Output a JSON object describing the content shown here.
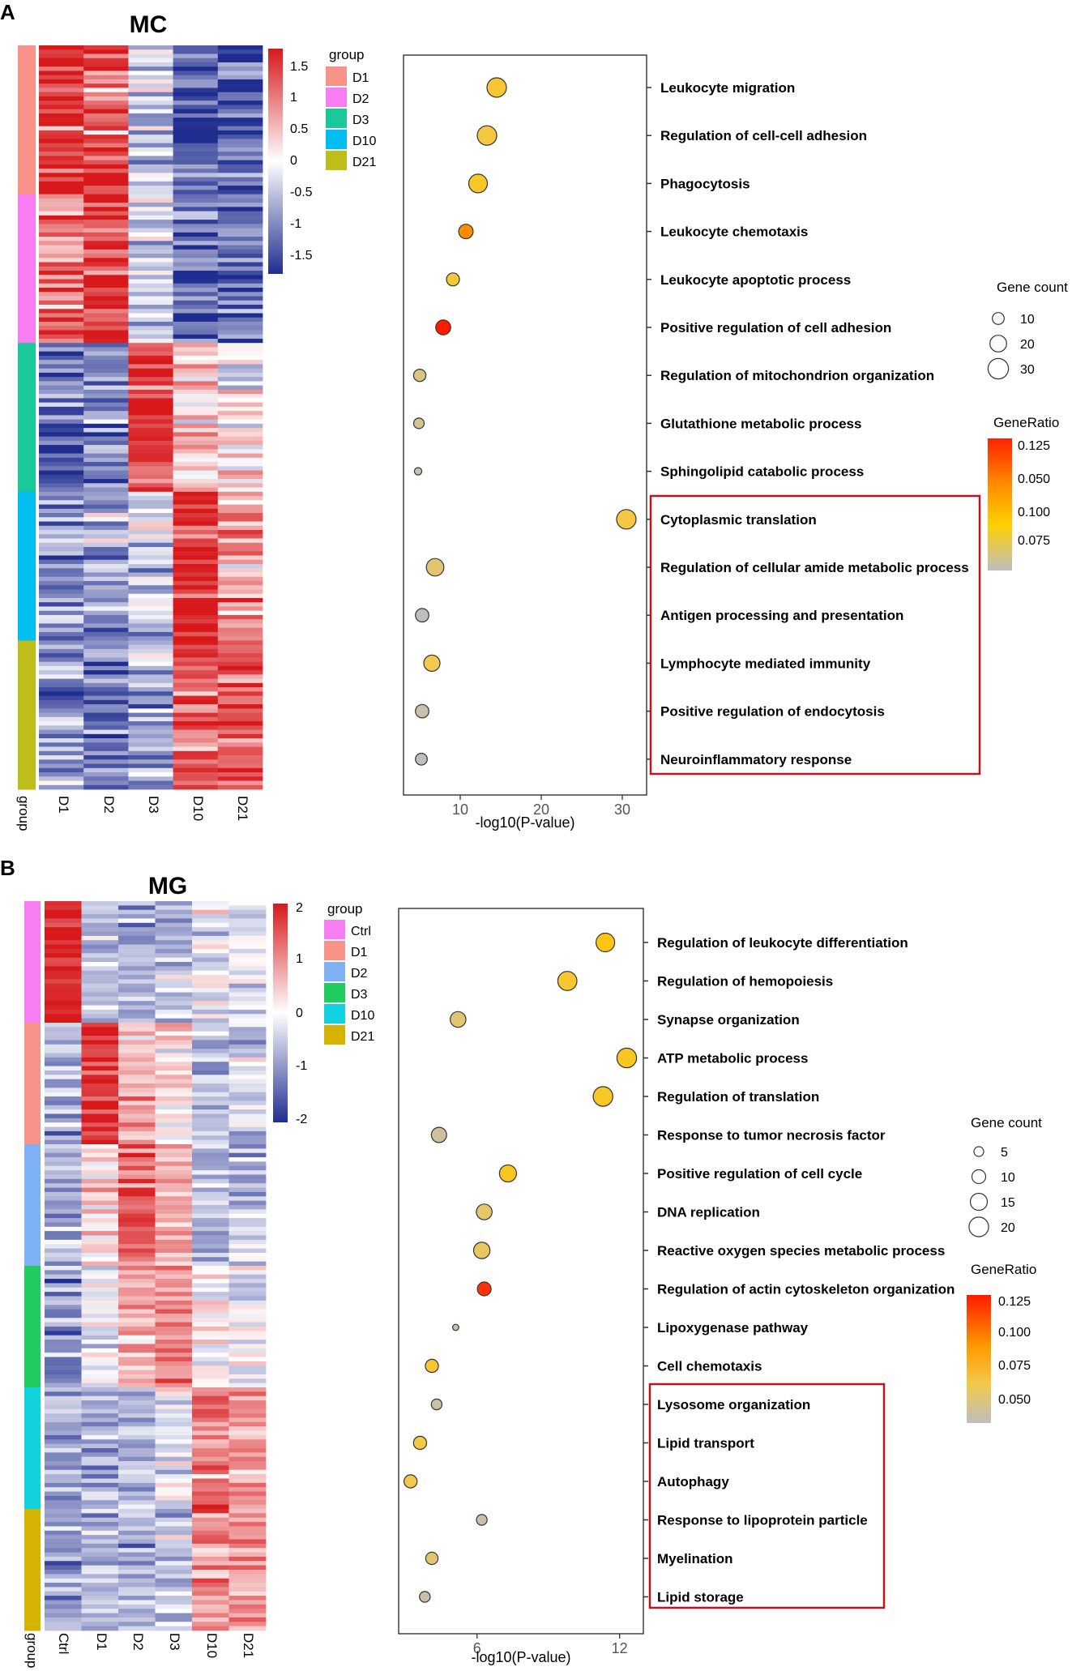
{
  "panels": [
    {
      "letter": "A",
      "title": "MC",
      "heatmap": {
        "columns": [
          "D1",
          "D2",
          "D3",
          "D10",
          "D21"
        ],
        "group_axis_label": "group",
        "groups": [
          {
            "name": "D1",
            "color": "#F8938A"
          },
          {
            "name": "D2",
            "color": "#F77EF2"
          },
          {
            "name": "D3",
            "color": "#1AC89A"
          },
          {
            "name": "D10",
            "color": "#00BFF0"
          },
          {
            "name": "D21",
            "color": "#BDBD1C"
          }
        ],
        "group_rows": [
          35,
          35,
          35,
          35,
          35
        ],
        "high_profile": [
          [
            1.3,
            1.0,
            -0.4,
            -1.1,
            -1.1
          ],
          [
            0.8,
            1.3,
            -0.3,
            -1.1,
            -1.0
          ],
          [
            -1.0,
            -0.8,
            1.4,
            0.3,
            0.0
          ],
          [
            -0.7,
            -0.7,
            -0.3,
            1.3,
            0.7
          ],
          [
            -0.7,
            -0.8,
            -0.6,
            1.1,
            1.2
          ]
        ],
        "color_scale": {
          "min": -1.5,
          "max": 1.5,
          "low": "#1F2D8F",
          "mid": "#FFFFFF",
          "high": "#D7191C"
        },
        "colorbar_ticks": [
          "1.5",
          "1",
          "0.5",
          "0",
          "-0.5",
          "-1",
          "-1.5"
        ],
        "legend_title": "group"
      },
      "chart_data": {
        "type": "scatter",
        "subtype": "dotplot",
        "xlabel": "-log10(P-value)",
        "xlim": [
          3,
          33
        ],
        "xticks": [
          10,
          20,
          30
        ],
        "terms": [
          "Leukocyte migration",
          "Regulation of cell-cell adhesion",
          "Phagocytosis",
          "Leukocyte chemotaxis",
          "Leukocyte apoptotic process",
          "Positive regulation of cell adhesion",
          "Regulation of mitochondrion organization",
          "Glutathione metabolic process",
          "Sphingolipid catabolic process",
          "Cytoplasmic translation",
          "Regulation of cellular amide metabolic process",
          "Antigen processing and presentation",
          "Lymphocyte mediated immunity",
          "Positive regulation of endocytosis",
          "Neuroinflammatory response"
        ],
        "x": [
          14.5,
          13.3,
          12.2,
          10.7,
          9.1,
          7.9,
          5.0,
          4.9,
          4.8,
          30.5,
          6.9,
          5.3,
          6.5,
          5.3,
          5.2
        ],
        "gene_count": [
          27,
          27,
          25,
          15,
          12,
          16,
          11,
          8,
          4,
          27,
          22,
          13,
          19,
          13,
          10
        ],
        "gene_ratio": [
          0.098,
          0.095,
          0.1,
          0.118,
          0.097,
          0.128,
          0.082,
          0.08,
          0.072,
          0.095,
          0.086,
          0.07,
          0.093,
          0.074,
          0.07
        ],
        "size_legend_title": "Gene count",
        "size_legend": [
          10,
          20,
          30
        ],
        "color_legend_title": "GeneRatio",
        "color_legend_ticks": [
          "0.125",
          "0.050",
          "0.100",
          "0.075"
        ],
        "color_range": [
          0.07,
          0.128
        ],
        "highlighted_terms_from_index": 9
      }
    },
    {
      "letter": "B",
      "title": "MG",
      "heatmap": {
        "columns": [
          "Ctrl",
          "D1",
          "D2",
          "D3",
          "D10",
          "D21"
        ],
        "group_axis_label": "group",
        "groups": [
          {
            "name": "Ctrl",
            "color": "#F77EF2"
          },
          {
            "name": "D1",
            "color": "#F8938A"
          },
          {
            "name": "D2",
            "color": "#7FB2F5"
          },
          {
            "name": "D3",
            "color": "#1FCC60"
          },
          {
            "name": "D10",
            "color": "#12D2E0"
          },
          {
            "name": "D21",
            "color": "#D4B400"
          }
        ],
        "group_rows": [
          28,
          28,
          28,
          28,
          28,
          28
        ],
        "high_profile": [
          [
            1.9,
            -0.6,
            -0.8,
            -0.7,
            -0.2,
            -0.3
          ],
          [
            -0.8,
            1.9,
            0.7,
            0.2,
            -0.6,
            -0.5
          ],
          [
            -0.7,
            0.3,
            1.3,
            0.9,
            -0.7,
            -0.6
          ],
          [
            -1.0,
            -0.2,
            0.7,
            1.0,
            0.1,
            -0.1
          ],
          [
            -0.8,
            -0.7,
            -0.7,
            -0.1,
            1.1,
            0.9
          ],
          [
            -0.9,
            -0.8,
            -0.7,
            -0.5,
            0.9,
            1.0
          ]
        ],
        "color_scale": {
          "min": -2,
          "max": 2,
          "low": "#1F2D8F",
          "mid": "#FFFFFF",
          "high": "#D7191C"
        },
        "colorbar_ticks": [
          "2",
          "1",
          "0",
          "-1",
          "-2"
        ],
        "legend_title": "group"
      },
      "chart_data": {
        "type": "scatter",
        "subtype": "dotplot",
        "xlabel": "-log10(P-value)",
        "xlim": [
          2.7,
          13.0
        ],
        "xticks": [
          6,
          12
        ],
        "terms": [
          "Regulation of leukocyte differentiation",
          "Regulation of hemopoiesis",
          "Synapse organization",
          "ATP metabolic process",
          "Regulation of translation",
          "Response to tumor necrosis factor",
          "Positive regulation of cell cycle",
          "DNA replication",
          "Reactive oxygen species metabolic process",
          "Regulation of actin cytoskeleton organization",
          "Lipoxygenase pathway",
          "Cell chemotaxis",
          "Lysosome organization",
          "Lipid transport",
          "Autophagy",
          "Response to lipoprotein particle",
          "Myelination",
          "Lipid storage"
        ],
        "x": [
          11.4,
          9.8,
          5.2,
          12.3,
          11.3,
          4.4,
          7.3,
          6.3,
          6.2,
          6.3,
          5.1,
          4.1,
          4.3,
          3.6,
          3.2,
          6.2,
          4.1,
          3.8
        ],
        "gene_count": [
          18,
          19,
          13,
          20,
          20,
          12,
          15,
          13,
          14,
          10,
          2,
          9,
          6,
          9,
          9,
          6,
          8,
          6
        ],
        "gene_ratio": [
          0.094,
          0.086,
          0.067,
          0.089,
          0.088,
          0.055,
          0.09,
          0.07,
          0.072,
          0.125,
          0.05,
          0.085,
          0.052,
          0.08,
          0.078,
          0.05,
          0.068,
          0.052
        ],
        "size_legend_title": "Gene count",
        "size_legend": [
          5,
          10,
          15,
          20
        ],
        "color_legend_title": "GeneRatio",
        "color_legend_ticks": [
          "0.125",
          "0.100",
          "0.075",
          "0.050"
        ],
        "color_range": [
          0.045,
          0.128
        ],
        "highlighted_terms_from_index": 12
      }
    }
  ]
}
